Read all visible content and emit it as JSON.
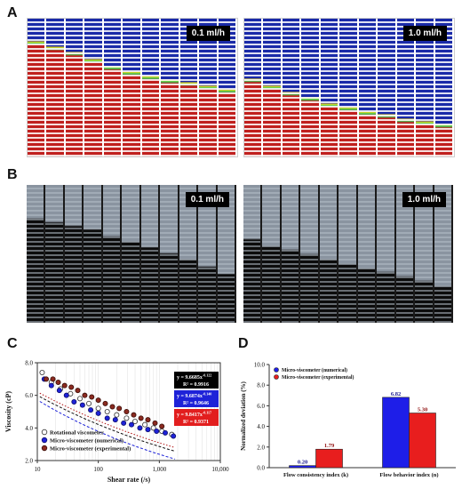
{
  "panels": {
    "A": {
      "letter": "A",
      "left_label": "0.1 ml/h",
      "right_label": "1.0 ml/h"
    },
    "B": {
      "letter": "B",
      "left_label": "0.1 ml/h",
      "right_label": "1.0 ml/h"
    },
    "C": {
      "letter": "C"
    },
    "D": {
      "letter": "D"
    }
  },
  "fill_levels": {
    "A_left": [
      0.18,
      0.22,
      0.26,
      0.31,
      0.36,
      0.4,
      0.43,
      0.46,
      0.48,
      0.5,
      0.53
    ],
    "A_right": [
      0.45,
      0.5,
      0.55,
      0.59,
      0.63,
      0.66,
      0.69,
      0.71,
      0.74,
      0.76,
      0.78
    ],
    "B_left": [
      0.25,
      0.28,
      0.3,
      0.33,
      0.38,
      0.42,
      0.46,
      0.5,
      0.55,
      0.6,
      0.65
    ],
    "B_right": [
      0.4,
      0.45,
      0.48,
      0.51,
      0.55,
      0.58,
      0.61,
      0.64,
      0.67,
      0.7,
      0.74
    ]
  },
  "colors": {
    "sim_fill": "#c0201e",
    "sim_empty": "#1a2aa8",
    "exp_fill": "#0c0c0c",
    "exp_empty": "#8a94a0"
  },
  "chart_data": [
    {
      "type": "scatter",
      "xlabel": "Shear rate (/s)",
      "ylabel": "Viscosity (cP)",
      "x_scale": "log",
      "xlim": [
        10,
        10000
      ],
      "ylim": [
        2.0,
        8.0
      ],
      "x_ticks": [
        "10",
        "100",
        "1,000",
        "10,000"
      ],
      "y_ticks": [
        "2.0",
        "4.0",
        "6.0",
        "8.0"
      ],
      "legend": [
        "Rotational viscometer",
        "Micro-viscometer (numerical)",
        "Micro-viscometer (experimental)"
      ],
      "legend_position": "bottom-left",
      "fits": [
        {
          "text": "y = 9.6685x",
          "exp": "-0.122",
          "r2_label": "R² = 0.9916",
          "box": "#000000",
          "text_color": "#ffffff"
        },
        {
          "text": "y = 9.6874x",
          "exp": "-0.140",
          "r2_label": "R² = 0.9646",
          "box": "#1e22d8",
          "text_color": "#ffffff"
        },
        {
          "text": "y = 9.8417x",
          "exp": "-0.117",
          "r2_label": "R² = 0.9371",
          "box": "#e21e1e",
          "text_color": "#ffffff"
        }
      ],
      "series": [
        {
          "name": "Rotational viscometer",
          "color": "#ffffff",
          "edge": "#333333",
          "x": [
            12,
            17,
            24,
            35,
            50,
            70,
            100,
            140,
            200,
            290,
            400,
            580,
            800,
            1100,
            1600
          ],
          "y": [
            7.4,
            6.8,
            6.4,
            6.1,
            5.8,
            5.5,
            5.2,
            5.0,
            4.8,
            4.6,
            4.4,
            4.2,
            4.0,
            3.8,
            3.6
          ]
        },
        {
          "name": "Micro-viscometer (numerical)",
          "color": "#1e22d8",
          "edge": "#10106a",
          "x": [
            13,
            17,
            23,
            30,
            40,
            55,
            75,
            100,
            140,
            190,
            260,
            350,
            480,
            650,
            900,
            1250,
            1700
          ],
          "y": [
            7.0,
            6.6,
            6.3,
            6.0,
            5.6,
            5.4,
            5.1,
            4.9,
            4.6,
            4.5,
            4.3,
            4.2,
            4.0,
            3.9,
            3.8,
            3.7,
            3.5
          ]
        },
        {
          "name": "Micro-viscometer (experimental)",
          "color": "#8b2a20",
          "edge": "#3a0e08",
          "x": [
            14,
            18,
            22,
            28,
            36,
            46,
            60,
            78,
            100,
            130,
            170,
            220,
            290,
            380,
            500,
            650,
            850,
            1100
          ],
          "y": [
            7.0,
            7.0,
            6.8,
            6.6,
            6.5,
            6.3,
            6.0,
            5.9,
            5.7,
            5.5,
            5.3,
            5.2,
            5.0,
            4.8,
            4.6,
            4.5,
            4.3,
            4.1
          ]
        }
      ]
    },
    {
      "type": "bar",
      "ylabel": "Normalized deviation (%)",
      "ylim": [
        0.0,
        10.0
      ],
      "y_ticks": [
        "0.0",
        "2.0",
        "4.0",
        "6.0",
        "8.0",
        "10.0"
      ],
      "categories": [
        "Flow consistency index (k)",
        "Flow behavior index (n)"
      ],
      "legend_position": "top-left",
      "series": [
        {
          "name": "Micro-viscometer (numerical)",
          "color": "#1e1ee8",
          "values": [
            0.2,
            6.82
          ],
          "labels": [
            "0.20",
            "6.82"
          ]
        },
        {
          "name": "Micro-viscometer (experimental)",
          "color": "#e81e1e",
          "values": [
            1.79,
            5.3
          ],
          "labels": [
            "1.79",
            "5.30"
          ]
        }
      ]
    }
  ]
}
